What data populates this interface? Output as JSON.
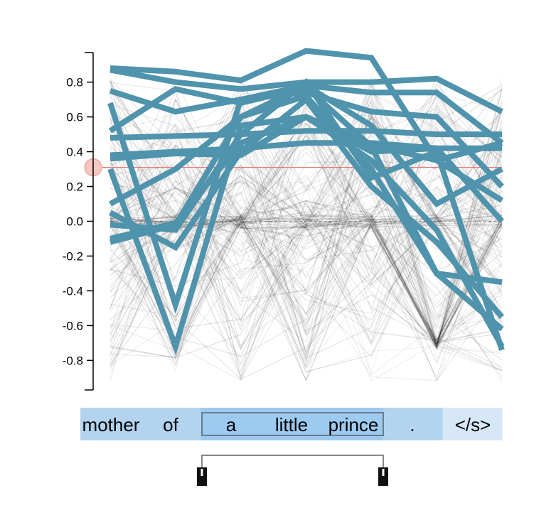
{
  "chart_data": {
    "type": "line",
    "x": [
      "mother",
      "of",
      "a",
      "little",
      "prince",
      ".",
      "</s>"
    ],
    "ylim": [
      -0.97,
      0.97
    ],
    "yticks": [
      0.8,
      0.6,
      0.4,
      0.2,
      0.0,
      -0.2,
      -0.4,
      -0.6,
      -0.8
    ],
    "ytick_labels": [
      "0.8",
      "0.6",
      "0.4",
      "0.2",
      "0.0",
      "-0.2",
      "-0.4",
      "-0.6",
      "-0.8"
    ],
    "threshold": 0.31,
    "selected_range": [
      2,
      4
    ],
    "highlighted_series": [
      {
        "values": [
          0.88,
          0.86,
          0.81,
          0.98,
          0.94,
          0.35,
          0.12
        ]
      },
      {
        "values": [
          0.87,
          0.8,
          0.76,
          0.8,
          0.8,
          0.82,
          0.63
        ]
      },
      {
        "values": [
          0.75,
          0.63,
          0.7,
          0.78,
          0.74,
          0.74,
          0.45
        ]
      },
      {
        "values": [
          0.68,
          -0.48,
          0.7,
          0.74,
          0.63,
          0.6,
          0.2
        ]
      },
      {
        "values": [
          0.52,
          0.76,
          0.68,
          0.77,
          0.43,
          -0.3,
          -0.62
        ]
      },
      {
        "values": [
          0.48,
          0.49,
          0.5,
          0.52,
          0.52,
          0.5,
          0.5
        ]
      },
      {
        "values": [
          0.38,
          0.4,
          0.42,
          0.45,
          0.45,
          0.42,
          0.42
        ]
      },
      {
        "values": [
          0.36,
          0.39,
          0.38,
          0.6,
          0.44,
          0.35,
          0.45
        ]
      },
      {
        "values": [
          0.3,
          -0.72,
          0.55,
          0.6,
          0.35,
          -0.05,
          -0.72
        ]
      },
      {
        "values": [
          0.1,
          0.3,
          0.6,
          0.72,
          0.3,
          -0.3,
          -0.35
        ]
      },
      {
        "values": [
          0.05,
          -0.15,
          0.4,
          0.7,
          0.2,
          -0.12,
          -0.55
        ]
      },
      {
        "values": [
          -0.02,
          -0.05,
          0.5,
          0.8,
          0.25,
          0.4,
          -0.74
        ]
      },
      {
        "values": [
          -0.1,
          -0.01,
          0.45,
          0.6,
          0.4,
          0.42,
          0.0
        ]
      },
      {
        "values": [
          -0.12,
          -0.02,
          0.6,
          0.78,
          0.55,
          0.1,
          0.3
        ]
      }
    ]
  },
  "token_bar": {
    "tokens": [
      "mother",
      "of",
      "a",
      "little",
      "prince",
      ".",
      "</s>"
    ]
  }
}
